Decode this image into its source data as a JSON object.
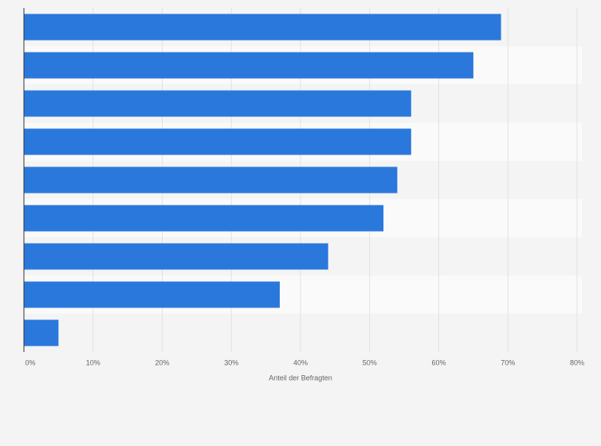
{
  "chart_data": {
    "type": "bar",
    "orientation": "horizontal",
    "x_label": "Anteil der Befragten",
    "categories": [
      null,
      null,
      null,
      null,
      null,
      null,
      null,
      null,
      null
    ],
    "values": [
      69,
      65,
      56,
      56,
      54,
      52,
      44,
      37,
      5
    ],
    "color": "#2a78dc",
    "xlim": [
      0,
      80
    ],
    "xticks": [
      {
        "value": 0,
        "label": "0%"
      },
      {
        "value": 10,
        "label": "10%"
      },
      {
        "value": 20,
        "label": "20%"
      },
      {
        "value": 30,
        "label": "30%"
      },
      {
        "value": 40,
        "label": "40%"
      },
      {
        "value": 50,
        "label": "50%"
      },
      {
        "value": 60,
        "label": "60%"
      },
      {
        "value": 70,
        "label": "70%"
      },
      {
        "value": 80,
        "label": "80%"
      }
    ],
    "grid": true
  }
}
